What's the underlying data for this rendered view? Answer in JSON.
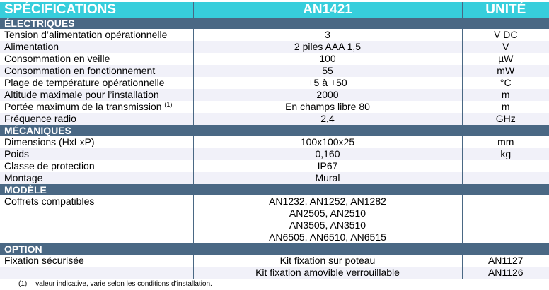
{
  "header": {
    "col1": "SPÉCIFICATIONS",
    "col2": "AN1421",
    "col3": "UNITÉ"
  },
  "colors": {
    "header": "#37cedc",
    "section": "#4a6884",
    "row_alt": "#f1f1f9"
  },
  "sections": [
    {
      "title": "ÉLECTRIQUES",
      "rows": [
        {
          "label": "Tension d’alimentation opérationnelle",
          "value": "3",
          "unit": "V DC"
        },
        {
          "label": "Alimentation",
          "value": "2 piles AAA 1,5",
          "unit": "V"
        },
        {
          "label": "Consommation en veille",
          "value": "100",
          "unit": "µW"
        },
        {
          "label": "Consommation en fonctionnement",
          "value": "55",
          "unit": "mW"
        },
        {
          "label": "Plage de température opérationnelle",
          "value": "+5 à +50",
          "unit": "°C"
        },
        {
          "label": "Altitude maximale pour l’installation",
          "value": "2000",
          "unit": "m"
        },
        {
          "label": "Portée maximum de la transmission",
          "sup": "(1)",
          "value": "En champs libre 80",
          "unit": "m"
        },
        {
          "label": "Fréquence radio",
          "value": "2,4",
          "unit": "GHz"
        }
      ]
    },
    {
      "title": "MÉCANIQUES",
      "rows": [
        {
          "label": "Dimensions (HxLxP)",
          "value": "100x100x25",
          "unit": "mm"
        },
        {
          "label": "Poids",
          "value": "0,160",
          "unit": "kg"
        },
        {
          "label": "Classe de protection",
          "value": "IP67",
          "unit": ""
        },
        {
          "label": "Montage",
          "value": "Mural",
          "unit": ""
        }
      ]
    },
    {
      "title": "MODÈLE",
      "rows": [
        {
          "label": "Coffrets compatibles",
          "lines": [
            "AN1232, AN1252, AN1282",
            "AN2505, AN2510",
            "AN3505, AN3510",
            "AN6505, AN6510, AN6515"
          ],
          "unit": ""
        }
      ]
    },
    {
      "title": "OPTION",
      "rows": [
        {
          "label": "Fixation sécurisée",
          "value": "Kit fixation sur poteau",
          "unit": "AN1127"
        },
        {
          "label": "",
          "value": "Kit fixation amovible verrouillable",
          "unit": "AN1126"
        }
      ]
    }
  ],
  "footnote": {
    "mark": "(1)",
    "text": "valeur indicative, varie selon les conditions d’installation."
  }
}
